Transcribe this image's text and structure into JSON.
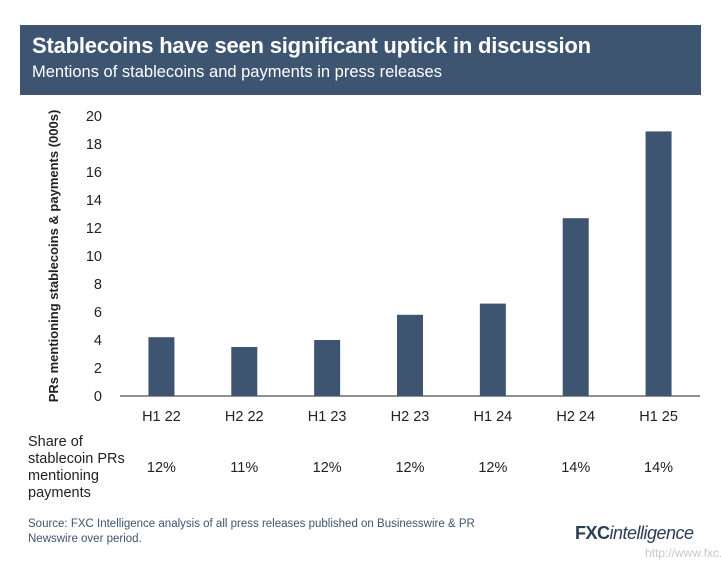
{
  "header": {
    "title": "Stablecoins have seen significant uptick in discussion",
    "subtitle": "Mentions of stablecoins and payments in press releases"
  },
  "chart_data": {
    "type": "bar",
    "title": "Stablecoins have seen significant uptick in discussion",
    "subtitle": "Mentions of stablecoins and payments in press releases",
    "xlabel": "",
    "ylabel": "PRs mentioning stablecoins & payments (000s)",
    "ylim": [
      0,
      20
    ],
    "yticks": [
      0,
      2,
      4,
      6,
      8,
      10,
      12,
      14,
      16,
      18,
      20
    ],
    "categories": [
      "H1 22",
      "H2 22",
      "H1 23",
      "H2 23",
      "H1 24",
      "H2 24",
      "H1 25"
    ],
    "values": [
      4.2,
      3.5,
      4.0,
      5.8,
      6.6,
      12.7,
      18.9
    ],
    "share_label": "Share of stablecoin PRs mentioning payments",
    "shares": [
      "12%",
      "11%",
      "12%",
      "12%",
      "12%",
      "14%",
      "14%"
    ],
    "bar_color": "#3d5571"
  },
  "footer": {
    "source": "Source: FXC Intelligence analysis of all press releases published on Businesswire & PR Newswire over period.",
    "logo_bold": "FXC",
    "logo_light": "intelligence",
    "watermark": "http://www.fxc.com"
  },
  "colors": {
    "header_bg": "#3d5571",
    "bar": "#3d5571",
    "text": "#222222"
  }
}
